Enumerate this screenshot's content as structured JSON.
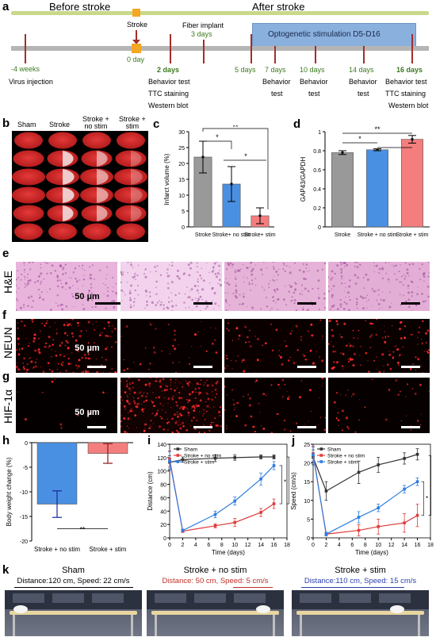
{
  "panels": {
    "a": {
      "label": "a",
      "before": "Before stroke",
      "after": "After stroke",
      "stroke": "Stroke",
      "day0": "0 day",
      "fiber": "Fiber implant",
      "fiber_days": "3 days",
      "opto": "Optogenetic stimulation D5-D16",
      "minus4": "-4 weeks",
      "virus": "Virus injection",
      "d2": "2 days",
      "d2_lines": [
        "Behavior test",
        "TTC staining",
        "Western blot"
      ],
      "d5": "5 days",
      "d7": "7 days",
      "d7_lines": [
        "Behavior",
        "test"
      ],
      "d10": "10 days",
      "d10_lines": [
        "Behavior",
        "test"
      ],
      "d14": "14 days",
      "d14_lines": [
        "Behavior",
        "test"
      ],
      "d16": "16 days",
      "d16_lines": [
        "Behavior test",
        "TTC staining",
        "Western blot"
      ]
    },
    "b": {
      "label": "b",
      "cols": [
        "Sham",
        "Stroke",
        "Stroke +\nno stim",
        "Stroke +\nstim"
      ]
    },
    "e": {
      "label": "e",
      "row": "H&E",
      "scale": "50 µm"
    },
    "f": {
      "label": "f",
      "row": "NEUN",
      "scale": "50 µm"
    },
    "g": {
      "label": "g",
      "row": "HIF-1α",
      "scale": "50 µm"
    },
    "efg_cols": [
      "Sham",
      "Stroke",
      "Stroke + no stim",
      "Stroke + stim"
    ],
    "k": {
      "label": "k",
      "cols": [
        {
          "title": "Sham",
          "caption": "Distance:120 cm, Speed: 22 cm/s",
          "color": "#000000"
        },
        {
          "title": "Stroke + no stim",
          "caption": "Distance: 50 cm, Speed: 5 cm/s",
          "color": "#c0302a"
        },
        {
          "title": "Stroke + stim",
          "caption": "Distance:110 cm, Speed: 15 cm/s",
          "color": "#2a3fb0"
        }
      ]
    }
  },
  "chart_data": [
    {
      "panel": "c",
      "type": "bar",
      "categories": [
        "Stroke",
        "Stroke+ no stim",
        "Stroke+ stim"
      ],
      "values": [
        22,
        13.5,
        3.5
      ],
      "errors": [
        5,
        5.5,
        2.5
      ],
      "colors": [
        "#999999",
        "#4a90e2",
        "#f47e7e"
      ],
      "ylabel": "Infarct volume (%)",
      "ylim": [
        0,
        30
      ],
      "yticks": [
        0,
        5,
        10,
        15,
        20,
        25,
        30
      ],
      "significance": [
        [
          "**",
          0,
          2
        ],
        [
          "*",
          0,
          1
        ],
        [
          "*",
          1,
          2
        ]
      ]
    },
    {
      "panel": "d",
      "type": "bar",
      "categories": [
        "Stroke",
        "Stroke + no stim",
        "Stroke + stim"
      ],
      "values": [
        0.78,
        0.81,
        0.92
      ],
      "errors": [
        0.02,
        0.01,
        0.04
      ],
      "colors": [
        "#999999",
        "#4a90e2",
        "#f47e7e"
      ],
      "ylabel": "GAP43/GAPDH",
      "ylim": [
        0,
        1.0
      ],
      "yticks": [
        0,
        0.2,
        0.4,
        0.6,
        0.8,
        1.0
      ],
      "significance": [
        [
          "**",
          0,
          2
        ],
        [
          "*",
          0,
          1
        ],
        [
          "*",
          1,
          2
        ]
      ]
    },
    {
      "panel": "h",
      "type": "bar",
      "categories": [
        "Stroke + no stim",
        "Stroke + stim"
      ],
      "values": [
        -12.5,
        -2.2
      ],
      "errors": [
        2.7,
        2.0
      ],
      "colors": [
        "#4a90e2",
        "#f47e7e"
      ],
      "ylabel": "Body weight change (%)",
      "ylim": [
        -20,
        0
      ],
      "yticks": [
        -20,
        -15,
        -10,
        -5,
        0
      ],
      "significance": [
        [
          "**",
          0,
          1
        ]
      ]
    },
    {
      "panel": "i",
      "type": "line",
      "x": [
        0,
        2,
        7,
        10,
        14,
        16
      ],
      "xlabel": "Time (days)",
      "ylabel": "Distance (cm)",
      "xlim": [
        0,
        18
      ],
      "xticks": [
        0,
        2,
        4,
        6,
        8,
        10,
        12,
        14,
        16,
        18
      ],
      "ylim": [
        0,
        140
      ],
      "yticks": [
        0,
        20,
        40,
        60,
        80,
        100,
        120,
        140
      ],
      "series": [
        {
          "name": "Sham",
          "color": "#333333",
          "values": [
            113,
            117,
            119,
            120,
            121,
            121
          ],
          "errors": [
            10,
            4,
            5,
            4,
            3,
            3
          ]
        },
        {
          "name": "Stroke + no stim",
          "color": "#e03c3c",
          "values": [
            118,
            10,
            18,
            23,
            38,
            51
          ],
          "errors": [
            12,
            2,
            3,
            6,
            6,
            7
          ]
        },
        {
          "name": "Stroke + stim",
          "color": "#2e7de0",
          "values": [
            115,
            11,
            35,
            55,
            88,
            108
          ],
          "errors": [
            14,
            2,
            5,
            6,
            9,
            6
          ]
        }
      ],
      "significance": [
        "*",
        "***"
      ]
    },
    {
      "panel": "j",
      "type": "line",
      "x": [
        0,
        2,
        7,
        10,
        14,
        16
      ],
      "xlabel": "Time (days)",
      "ylabel": "Speed (cm/s)",
      "xlim": [
        0,
        18
      ],
      "xticks": [
        0,
        2,
        4,
        6,
        8,
        10,
        12,
        14,
        16,
        18
      ],
      "ylim": [
        0,
        25
      ],
      "yticks": [
        0,
        5,
        10,
        15,
        20,
        25
      ],
      "series": [
        {
          "name": "Sham",
          "color": "#333333",
          "values": [
            21.5,
            12.5,
            17.5,
            19.5,
            21.2,
            22.3
          ],
          "errors": [
            2,
            2.5,
            3,
            2,
            1.5,
            1.5
          ]
        },
        {
          "name": "Stroke + no stim",
          "color": "#e03c3c",
          "values": [
            22.5,
            1.0,
            2.0,
            3.0,
            4.0,
            6.0
          ],
          "errors": [
            2,
            0.5,
            1.5,
            2,
            2.5,
            3
          ]
        },
        {
          "name": "Stroke + stim",
          "color": "#2e7de0",
          "values": [
            22.2,
            1.0,
            5.5,
            8.0,
            13.0,
            15.0
          ],
          "errors": [
            2,
            0.5,
            1.5,
            1,
            1,
            1
          ]
        }
      ],
      "significance": [
        "*",
        "***"
      ]
    }
  ]
}
